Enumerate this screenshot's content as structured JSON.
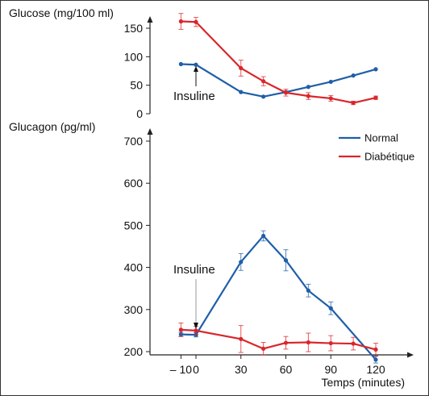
{
  "chart_data": [
    {
      "type": "line",
      "title": "Glucose (mg/100 ml)",
      "x": [
        -10,
        0,
        30,
        45,
        60,
        75,
        90,
        105,
        120
      ],
      "ylim": [
        0,
        175
      ],
      "yticks": [
        "0",
        "50",
        "100",
        "150"
      ],
      "series": [
        {
          "name": "Normal",
          "color": "#1f5ea8",
          "values": [
            87,
            86,
            38,
            30,
            38,
            47,
            56,
            67,
            78
          ],
          "errors": [
            0,
            0,
            0,
            0,
            0,
            0,
            0,
            0,
            0
          ]
        },
        {
          "name": "Diabétique",
          "color": "#d9262b",
          "values": [
            162,
            161,
            80,
            57,
            37,
            31,
            27,
            19,
            28
          ],
          "errors": [
            14,
            8,
            14,
            8,
            6,
            6,
            5,
            3,
            3
          ]
        }
      ],
      "annotation": {
        "text": "Insuline",
        "x": 0
      }
    },
    {
      "type": "line",
      "title": "Glucagon (pg/ml)",
      "x": [
        -10,
        0,
        30,
        45,
        60,
        75,
        90,
        105,
        120
      ],
      "xticks": [
        "– 10",
        "0",
        "30",
        "60",
        "90",
        "120"
      ],
      "xtick_values": [
        -10,
        0,
        30,
        60,
        90,
        120
      ],
      "xlabel": "Temps (minutes)",
      "ylim": [
        185,
        720
      ],
      "yticks": [
        "200",
        "300",
        "400",
        "500",
        "600",
        "700"
      ],
      "ytick_values": [
        200,
        300,
        400,
        500,
        600,
        700
      ],
      "series": [
        {
          "name": "Normal",
          "color": "#1f5ea8",
          "values": [
            241,
            240,
            413,
            475,
            417,
            345,
            303,
            null,
            181
          ],
          "errors": [
            5,
            5,
            20,
            12,
            25,
            15,
            15,
            0,
            8
          ]
        },
        {
          "name": "Diabétique",
          "color": "#d9262b",
          "values": [
            252,
            250,
            230,
            207,
            221,
            222,
            220,
            219,
            205
          ],
          "errors": [
            16,
            10,
            32,
            15,
            15,
            22,
            18,
            15,
            15
          ]
        }
      ],
      "annotation": {
        "text": "Insuline",
        "x": 0
      }
    }
  ],
  "legend": {
    "position": "top-right",
    "items": [
      "Normal",
      "Diabétique"
    ]
  }
}
